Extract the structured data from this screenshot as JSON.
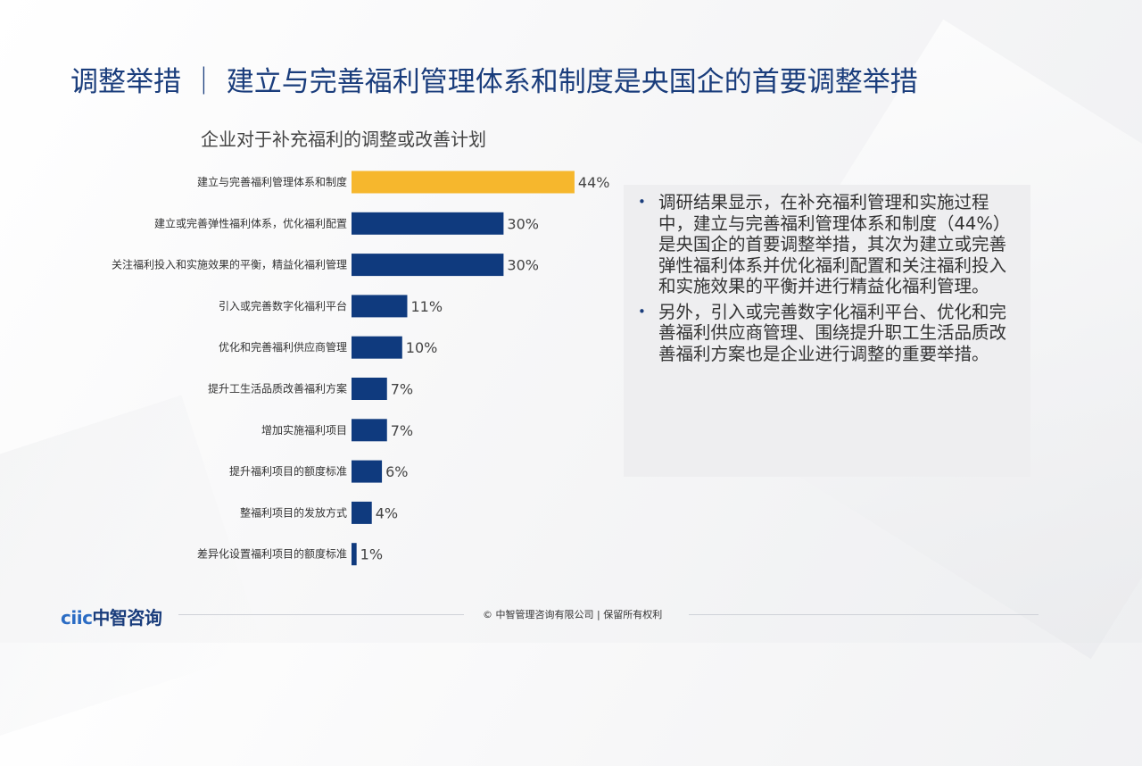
{
  "page": {
    "title": "调整举措 ｜ 建立与完善福利管理体系和制度是央国企的首要调整举措"
  },
  "chart_data": {
    "type": "bar",
    "orientation": "horizontal",
    "title": "企业对于补充福利的调整或改善计划",
    "xlabel": "",
    "ylabel": "",
    "xlim": [
      0,
      50
    ],
    "value_suffix": "%",
    "categories": [
      "建立与完善福利管理体系和制度",
      "建立或完善弹性福利体系，优化福利配置",
      "关注福利投入和实施效果的平衡，精益化福利管理",
      "引入或完善数字化福利平台",
      "优化和完善福利供应商管理",
      "提升工生活品质改善福利方案",
      "增加实施福利项目",
      "提升福利项目的额度标准",
      "整福利项目的发放方式",
      "差异化设置福利项目的额度标准"
    ],
    "values": [
      44,
      30,
      30,
      11,
      10,
      7,
      7,
      6,
      4,
      1
    ],
    "highlight_index": 0,
    "colors": {
      "highlight": "#f6b72d",
      "bar": "#0f3a7e",
      "label": "#444444"
    },
    "grid": false,
    "legend": "none"
  },
  "insights": {
    "bullets": [
      "调研结果显示，在补充福利管理和实施过程中，建立与完善福利管理体系和制度（44%）是央国企的首要调整举措，其次为建立或完善弹性福利体系并优化福利配置和关注福利投入和实施效果的平衡并进行精益化福利管理。",
      "另外，引入或完善数字化福利平台、优化和完善福利供应商管理、围绕提升职工生活品质改善福利方案也是企业进行调整的重要举措。"
    ]
  },
  "footer": {
    "logo_part1": "ciic",
    "logo_part2": "中智咨询",
    "copyright": "© 中智管理咨询有限公司 | 保留所有权利"
  }
}
